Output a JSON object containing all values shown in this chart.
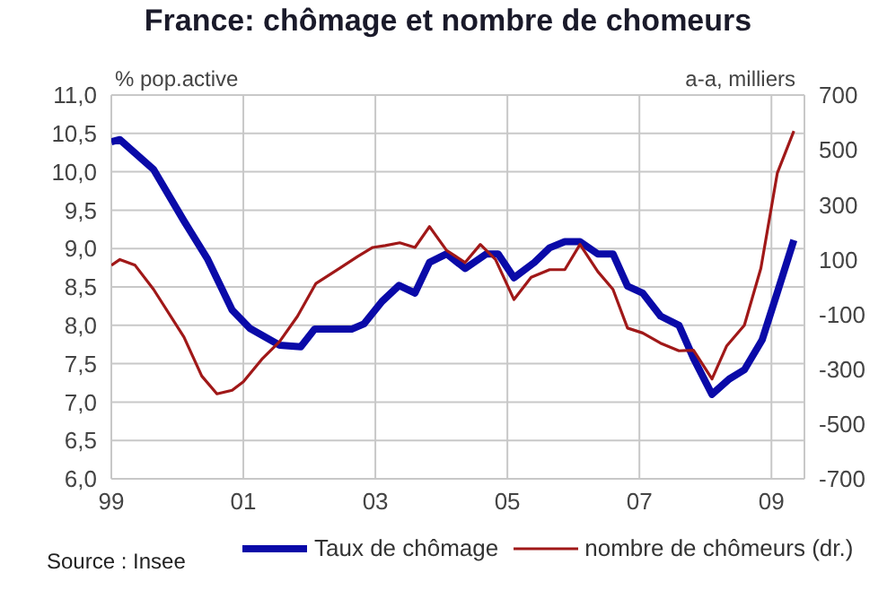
{
  "chart_data": {
    "type": "line",
    "title": "France: chômage et nombre de chomeurs",
    "ylabel": "% pop.active",
    "y2label": "a-a, milliers",
    "annotations": [
      "Source : Insee"
    ],
    "xlim": [
      1999,
      2009.5
    ],
    "xticks": [
      {
        "value": 1999,
        "label": "99"
      },
      {
        "value": 2001,
        "label": "01"
      },
      {
        "value": 2003,
        "label": "03"
      },
      {
        "value": 2005,
        "label": "05"
      },
      {
        "value": 2007,
        "label": "07"
      },
      {
        "value": 2009,
        "label": "09"
      }
    ],
    "ylim": [
      6,
      11
    ],
    "yticks": [
      {
        "value": 6,
        "label": "6,0"
      },
      {
        "value": 6.5,
        "label": "6,5"
      },
      {
        "value": 7,
        "label": "7,0"
      },
      {
        "value": 7.5,
        "label": "7,5"
      },
      {
        "value": 8,
        "label": "8,0"
      },
      {
        "value": 8.5,
        "label": "8,5"
      },
      {
        "value": 9,
        "label": "9,0"
      },
      {
        "value": 9.5,
        "label": "9,5"
      },
      {
        "value": 10,
        "label": "10,0"
      },
      {
        "value": 10.5,
        "label": "10,5"
      },
      {
        "value": 11,
        "label": "11,0"
      }
    ],
    "y2lim": [
      -700,
      700
    ],
    "y2ticks": [
      -700,
      -500,
      -300,
      -100,
      100,
      300,
      500,
      700
    ],
    "grid": true,
    "legend": "bottom",
    "marker": "none",
    "line_style": "solid",
    "series": [
      {
        "name": "Taux de chômage",
        "color": "#0a0aa8",
        "x": [
          1999.0,
          1999.13,
          1999.64,
          2000.1,
          2000.46,
          2000.83,
          2001.1,
          2001.55,
          2001.87,
          2002.08,
          2002.64,
          2002.83,
          2003.1,
          2003.36,
          2003.6,
          2003.82,
          2004.08,
          2004.36,
          2004.68,
          2004.86,
          2005.1,
          2005.41,
          2005.64,
          2005.87,
          2006.1,
          2006.37,
          2006.6,
          2006.82,
          2007.05,
          2007.32,
          2007.6,
          2007.82,
          2008.1,
          2008.36,
          2008.59,
          2008.86,
          2009.09,
          2009.34
        ],
        "values": [
          10.39,
          10.42,
          10.03,
          9.36,
          8.86,
          8.2,
          7.96,
          7.74,
          7.72,
          7.95,
          7.95,
          8.02,
          8.31,
          8.52,
          8.42,
          8.82,
          8.93,
          8.74,
          8.93,
          8.93,
          8.62,
          8.82,
          9.01,
          9.09,
          9.09,
          8.93,
          8.93,
          8.51,
          8.42,
          8.12,
          8.0,
          7.57,
          7.1,
          7.3,
          7.42,
          7.81,
          8.43,
          9.11
        ]
      },
      {
        "name": "nombre de chômeurs (dr.)",
        "color": "#a01818",
        "axis": "y2",
        "x": [
          1999.0,
          1999.13,
          1999.36,
          1999.64,
          2000.1,
          2000.37,
          2000.6,
          2000.83,
          2001.0,
          2001.28,
          2001.55,
          2001.82,
          2002.1,
          2002.46,
          2002.73,
          2002.96,
          2003.15,
          2003.37,
          2003.6,
          2003.82,
          2004.08,
          2004.36,
          2004.59,
          2004.82,
          2005.1,
          2005.36,
          2005.64,
          2005.87,
          2006.1,
          2006.37,
          2006.6,
          2006.82,
          2007.05,
          2007.32,
          2007.6,
          2007.82,
          2008.1,
          2008.32,
          2008.59,
          2008.84,
          2009.09,
          2009.34
        ],
        "values": [
          79,
          100,
          79,
          -9,
          -183,
          -325,
          -390,
          -377,
          -346,
          -264,
          -199,
          -107,
          13,
          68,
          111,
          144,
          151,
          161,
          144,
          220,
          133,
          89,
          155,
          100,
          -46,
          35,
          63,
          63,
          155,
          56,
          -9,
          -150,
          -168,
          -205,
          -233,
          -231,
          -336,
          -216,
          -140,
          68,
          416,
          569
        ]
      }
    ]
  }
}
